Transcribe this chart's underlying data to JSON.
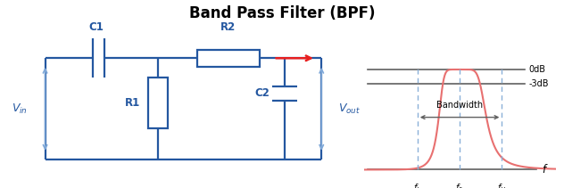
{
  "title": "Band Pass Filter (BPF)",
  "title_fontsize": 12,
  "circuit_color": "#2457a0",
  "arrow_color": "#7fa8d8",
  "red_color": "#e82020",
  "dark_gray": "#606060",
  "bpf_curve_color": "#e87070",
  "dashed_color": "#8ab0d8",
  "background": "#ffffff",
  "component_labels": [
    "C1",
    "R2",
    "R1",
    "C2"
  ],
  "db_labels": [
    "0dB",
    "-3dB"
  ],
  "bandwidth_label": "Bandwidth",
  "freq_axis_label": "f",
  "circuit_lw": 1.6,
  "graph_lw": 1.2
}
